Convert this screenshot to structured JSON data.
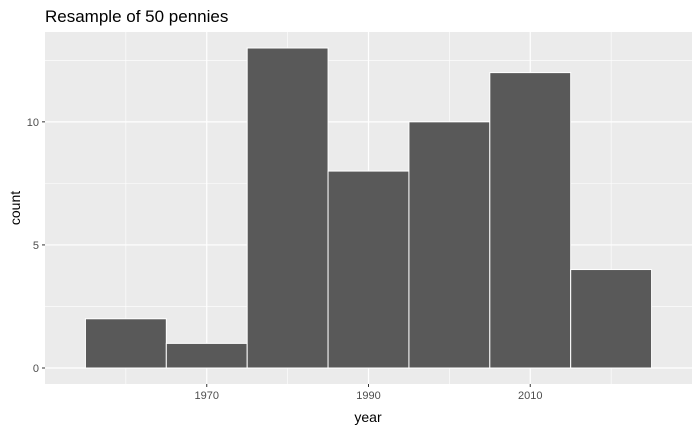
{
  "chart_data": {
    "type": "bar",
    "title": "Resample of 50 pennies",
    "xlabel": "year",
    "ylabel": "count",
    "bins": [
      {
        "start": 1955,
        "end": 1965,
        "count": 2
      },
      {
        "start": 1965,
        "end": 1975,
        "count": 1
      },
      {
        "start": 1975,
        "end": 1985,
        "count": 13
      },
      {
        "start": 1985,
        "end": 1995,
        "count": 8
      },
      {
        "start": 1995,
        "end": 2005,
        "count": 10
      },
      {
        "start": 2005,
        "end": 2015,
        "count": 12
      },
      {
        "start": 2015,
        "end": 2025,
        "count": 4
      }
    ],
    "xlim": [
      1950,
      2030
    ],
    "ylim": [
      -0.65,
      13.65
    ],
    "x_ticks": [
      1970,
      1990,
      2010
    ],
    "x_tick_labels": [
      "1970",
      "1990",
      "2010"
    ],
    "y_ticks": [
      0,
      5,
      10
    ],
    "y_tick_labels": [
      "0",
      "5",
      "10"
    ],
    "grid": true,
    "colors": {
      "panel_background": "#ebebeb",
      "grid_line": "#ffffff",
      "bar_fill": "#595959",
      "bar_outline": "#ffffff"
    }
  }
}
